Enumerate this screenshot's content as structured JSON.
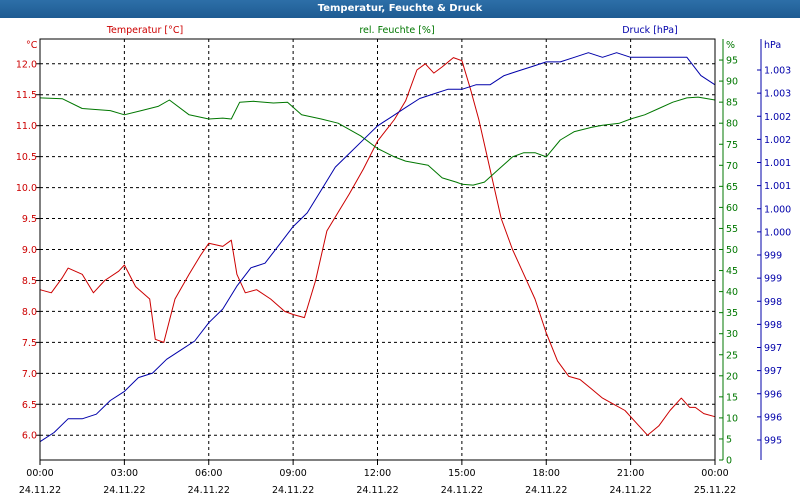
{
  "window": {
    "title": "Temperatur, Feuchte & Druck"
  },
  "colors": {
    "temperature": "#cc0000",
    "humidity": "#007700",
    "pressure": "#0000aa",
    "text": "#000000",
    "grid": "#000000"
  },
  "chart_data": {
    "type": "line",
    "title": "Temperatur, Feuchte & Druck",
    "grid": true,
    "x_ticks": [
      {
        "time": "00:00",
        "date": "24.11.22"
      },
      {
        "time": "03:00",
        "date": "24.11.22"
      },
      {
        "time": "06:00",
        "date": "24.11.22"
      },
      {
        "time": "09:00",
        "date": "24.11.22"
      },
      {
        "time": "12:00",
        "date": "24.11.22"
      },
      {
        "time": "15:00",
        "date": "24.11.22"
      },
      {
        "time": "18:00",
        "date": "24.11.22"
      },
      {
        "time": "21:00",
        "date": "24.11.22"
      },
      {
        "time": "00:00",
        "date": "25.11.22"
      }
    ],
    "xlim_hours": [
      0,
      24
    ],
    "axes": {
      "temperature": {
        "label": "Temperatur [°C]",
        "unit": "°C",
        "ylim": [
          5.6,
          12.4
        ],
        "ticks": [
          "12.0",
          "11.5",
          "11.0",
          "10.5",
          "10.0",
          "9.5",
          "9.0",
          "8.5",
          "8.0",
          "7.5",
          "7.0",
          "6.5",
          "6.0"
        ]
      },
      "humidity": {
        "label": "rel. Feuchte [%]",
        "unit": "%",
        "ylim": [
          0,
          100
        ],
        "ticks": [
          "95",
          "90",
          "85",
          "80",
          "75",
          "70",
          "65",
          "60",
          "55",
          "50",
          "45",
          "40",
          "35",
          "30",
          "25",
          "20",
          "15",
          "10",
          "5",
          "0"
        ]
      },
      "pressure": {
        "label": "Druck [hPa]",
        "unit": "hPa",
        "ylim": [
          994.6,
          1003.8
        ],
        "ticks": [
          "1.003",
          "1.003",
          "1.002",
          "1.002",
          "1.001",
          "1.001",
          "1.000",
          "1.000",
          "999",
          "999",
          "998",
          "998",
          "997",
          "997",
          "996",
          "996",
          "995"
        ]
      }
    },
    "series": [
      {
        "name": "Temperatur [°C]",
        "axis": "temperature",
        "x": [
          0,
          0.4,
          0.8,
          1.0,
          1.5,
          1.9,
          2.3,
          2.8,
          3.0,
          3.4,
          3.9,
          4.1,
          4.4,
          4.8,
          5.3,
          5.7,
          6.0,
          6.5,
          6.8,
          7.0,
          7.3,
          7.7,
          8.2,
          8.7,
          9.0,
          9.4,
          9.8,
          10.2,
          10.6,
          11.0,
          11.5,
          12.0,
          12.6,
          13.0,
          13.4,
          13.7,
          14.0,
          14.3,
          14.7,
          15.0,
          15.3,
          15.6,
          16.0,
          16.4,
          16.8,
          17.2,
          17.6,
          18.0,
          18.4,
          18.8,
          19.2,
          19.6,
          20.0,
          20.4,
          20.8,
          21.2,
          21.6,
          22.0,
          22.4,
          22.8,
          23.1,
          23.3,
          23.6,
          24.0
        ],
        "values": [
          8.35,
          8.3,
          8.55,
          8.7,
          8.6,
          8.3,
          8.5,
          8.65,
          8.75,
          8.4,
          8.2,
          7.55,
          7.5,
          8.2,
          8.6,
          8.9,
          9.1,
          9.05,
          9.15,
          8.6,
          8.3,
          8.35,
          8.2,
          8.0,
          7.95,
          7.9,
          8.5,
          9.3,
          9.6,
          9.9,
          10.3,
          10.75,
          11.1,
          11.4,
          11.9,
          12.0,
          11.85,
          11.95,
          12.1,
          12.05,
          11.6,
          11.1,
          10.3,
          9.5,
          9.0,
          8.6,
          8.2,
          7.65,
          7.2,
          6.95,
          6.9,
          6.75,
          6.6,
          6.5,
          6.4,
          6.2,
          6.0,
          6.15,
          6.4,
          6.6,
          6.45,
          6.45,
          6.35,
          6.3
        ]
      },
      {
        "name": "rel. Feuchte [%]",
        "axis": "humidity",
        "x": [
          0,
          0.8,
          1.5,
          2.5,
          3.0,
          3.6,
          4.2,
          4.6,
          5.3,
          6.0,
          6.5,
          6.8,
          7.1,
          7.6,
          8.3,
          8.8,
          9.3,
          10.0,
          10.6,
          11.4,
          12.0,
          12.6,
          13.0,
          13.8,
          14.3,
          14.8,
          15.0,
          15.4,
          15.8,
          16.3,
          16.8,
          17.2,
          17.6,
          18.0,
          18.5,
          19.0,
          19.6,
          20.0,
          20.6,
          21.0,
          21.5,
          22.0,
          22.5,
          23.0,
          23.4,
          24.0
        ],
        "values": [
          86,
          85.8,
          83.5,
          83,
          82,
          83,
          84,
          85.5,
          82,
          81,
          81.2,
          81,
          85,
          85.2,
          84.8,
          85,
          82,
          81,
          80,
          77,
          74,
          72,
          71,
          70,
          67,
          66,
          65.5,
          65.3,
          66,
          69,
          72,
          73,
          73,
          72,
          76,
          78,
          79,
          79.5,
          80,
          81,
          82,
          83.5,
          85,
          86,
          86.2,
          85.5
        ]
      },
      {
        "name": "Druck [hPa]",
        "axis": "pressure",
        "x": [
          0,
          0.5,
          1.0,
          1.5,
          2.0,
          2.5,
          3.0,
          3.5,
          4.0,
          4.5,
          5.0,
          5.5,
          6.0,
          6.5,
          7.0,
          7.5,
          8.0,
          8.5,
          9.0,
          9.5,
          10.0,
          10.5,
          11.0,
          11.5,
          12.0,
          12.5,
          13.0,
          13.5,
          14.0,
          14.5,
          15.0,
          15.5,
          16.0,
          16.5,
          17.0,
          17.5,
          18.0,
          18.5,
          19.0,
          19.5,
          20.0,
          20.5,
          21.0,
          21.5,
          22.0,
          22.5,
          23.0,
          23.5,
          24.0
        ],
        "values": [
          995.0,
          995.2,
          995.5,
          995.5,
          995.6,
          995.9,
          996.1,
          996.4,
          996.5,
          996.8,
          997.0,
          997.2,
          997.6,
          997.9,
          998.4,
          998.8,
          998.9,
          999.3,
          999.7,
          1000.0,
          1000.5,
          1001.0,
          1001.3,
          1001.6,
          1001.9,
          1002.1,
          1002.3,
          1002.5,
          1002.6,
          1002.7,
          1002.7,
          1002.8,
          1002.8,
          1003.0,
          1003.1,
          1003.2,
          1003.3,
          1003.3,
          1003.4,
          1003.5,
          1003.4,
          1003.5,
          1003.4,
          1003.4,
          1003.4,
          1003.4,
          1003.4,
          1003.0,
          1002.8
        ]
      }
    ]
  }
}
